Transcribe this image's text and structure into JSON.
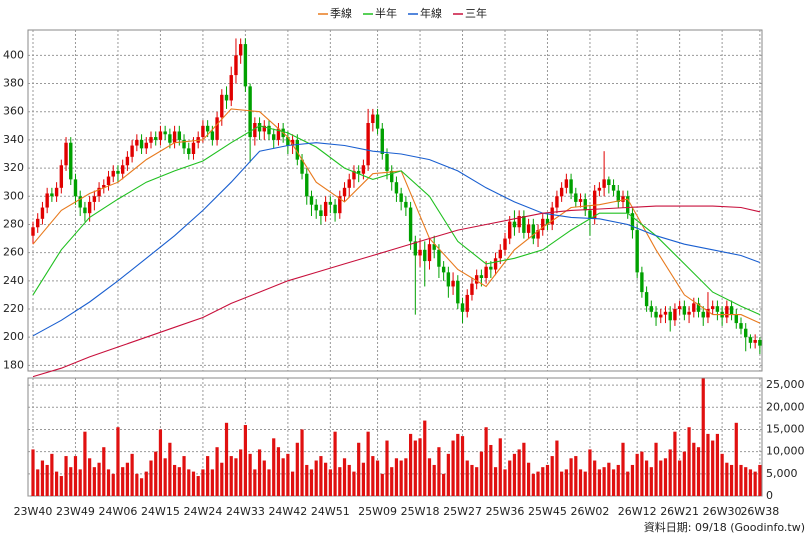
{
  "chart_data": {
    "type": "candlestick",
    "categories": [
      "23W40",
      null,
      null,
      null,
      null,
      null,
      null,
      null,
      null,
      "23W49",
      null,
      null,
      null,
      null,
      null,
      null,
      null,
      null,
      "24W06",
      null,
      null,
      null,
      null,
      null,
      null,
      null,
      null,
      "24W15",
      null,
      null,
      null,
      null,
      null,
      null,
      null,
      null,
      "24W24",
      null,
      null,
      null,
      null,
      null,
      null,
      null,
      null,
      "24W33",
      null,
      null,
      null,
      null,
      null,
      null,
      null,
      null,
      "24W42",
      null,
      null,
      null,
      null,
      null,
      null,
      null,
      null,
      "24W51",
      null,
      null,
      null,
      null,
      null,
      null,
      null,
      null,
      null,
      "25W09",
      null,
      null,
      null,
      null,
      null,
      null,
      null,
      null,
      "25W18",
      null,
      null,
      null,
      null,
      null,
      null,
      null,
      null,
      "25W27",
      null,
      null,
      null,
      null,
      null,
      null,
      null,
      null,
      "25W36",
      null,
      null,
      null,
      null,
      null,
      null,
      null,
      null,
      "25W45",
      null,
      null,
      null,
      null,
      null,
      null,
      null,
      null,
      "26W02",
      null,
      null,
      null,
      null,
      null,
      null,
      null,
      null,
      null,
      "26W12",
      null,
      null,
      null,
      null,
      null,
      null,
      null,
      null,
      "26W21",
      null,
      null,
      null,
      null,
      null,
      null,
      null,
      null,
      "26W30",
      null,
      null,
      null,
      null,
      null,
      null,
      null,
      "26W38"
    ],
    "open": [
      272,
      278,
      284,
      292,
      302,
      300,
      306,
      322,
      338,
      312,
      300,
      292,
      288,
      296,
      300,
      306,
      308,
      314,
      318,
      316,
      322,
      328,
      336,
      340,
      334,
      338,
      342,
      340,
      346,
      344,
      338,
      346,
      340,
      334,
      330,
      338,
      342,
      350,
      346,
      340,
      356,
      372,
      368,
      386,
      400,
      408,
      378,
      342,
      352,
      346,
      350,
      344,
      340,
      348,
      342,
      336,
      340,
      326,
      316,
      300,
      294,
      290,
      286,
      296,
      294,
      288,
      300,
      306,
      312,
      318,
      316,
      322,
      352,
      358,
      348,
      330,
      318,
      310,
      302,
      296,
      292,
      268,
      258,
      262,
      254,
      266,
      262,
      250,
      246,
      236,
      240,
      224,
      218,
      230,
      238,
      244,
      242,
      250,
      248,
      256,
      262,
      270,
      282,
      278,
      286,
      274,
      280,
      270,
      276,
      284,
      280,
      292,
      300,
      306,
      312,
      302,
      296,
      298,
      290,
      284,
      304,
      306,
      312,
      308,
      304,
      296,
      300,
      288,
      276,
      246,
      232,
      222,
      218,
      214,
      216,
      218,
      212,
      220,
      222,
      216,
      218,
      224,
      218,
      214,
      220,
      222,
      218,
      214,
      222,
      216,
      210,
      206,
      200,
      196,
      198
    ],
    "high": [
      282,
      288,
      296,
      306,
      306,
      310,
      326,
      342,
      342,
      316,
      304,
      296,
      300,
      304,
      310,
      312,
      318,
      322,
      322,
      326,
      332,
      340,
      344,
      344,
      342,
      346,
      346,
      350,
      350,
      348,
      350,
      350,
      344,
      338,
      342,
      346,
      354,
      354,
      350,
      360,
      376,
      378,
      392,
      412,
      412,
      412,
      380,
      356,
      356,
      354,
      354,
      348,
      352,
      352,
      346,
      344,
      344,
      330,
      320,
      304,
      298,
      294,
      300,
      300,
      298,
      304,
      310,
      316,
      322,
      322,
      326,
      362,
      362,
      362,
      352,
      334,
      322,
      314,
      306,
      300,
      296,
      272,
      270,
      268,
      270,
      272,
      266,
      254,
      250,
      246,
      244,
      228,
      234,
      242,
      248,
      248,
      254,
      254,
      260,
      266,
      274,
      286,
      290,
      290,
      290,
      284,
      284,
      280,
      288,
      288,
      296,
      304,
      310,
      316,
      316,
      306,
      302,
      302,
      294,
      308,
      310,
      332,
      314,
      312,
      308,
      304,
      304,
      292,
      280,
      250,
      236,
      226,
      222,
      220,
      222,
      222,
      224,
      226,
      226,
      222,
      228,
      228,
      222,
      232,
      226,
      226,
      222,
      226,
      226,
      220,
      214,
      210,
      202,
      202,
      200
    ],
    "low": [
      266,
      274,
      280,
      288,
      296,
      296,
      302,
      318,
      308,
      294,
      286,
      282,
      282,
      290,
      296,
      302,
      304,
      310,
      310,
      312,
      318,
      324,
      332,
      330,
      330,
      334,
      336,
      336,
      340,
      334,
      334,
      336,
      330,
      326,
      326,
      334,
      338,
      342,
      336,
      336,
      350,
      362,
      364,
      380,
      394,
      374,
      324,
      336,
      340,
      340,
      340,
      334,
      336,
      338,
      330,
      330,
      322,
      312,
      294,
      286,
      284,
      280,
      282,
      288,
      282,
      284,
      296,
      300,
      306,
      310,
      312,
      318,
      346,
      344,
      326,
      312,
      304,
      296,
      290,
      286,
      262,
      216,
      250,
      236,
      248,
      256,
      242,
      240,
      228,
      230,
      220,
      210,
      214,
      226,
      234,
      236,
      238,
      242,
      244,
      252,
      258,
      266,
      272,
      274,
      270,
      270,
      266,
      264,
      272,
      276,
      276,
      288,
      296,
      302,
      298,
      292,
      292,
      286,
      272,
      280,
      300,
      300,
      302,
      300,
      292,
      292,
      284,
      270,
      242,
      228,
      218,
      214,
      208,
      210,
      210,
      204,
      208,
      216,
      212,
      210,
      214,
      214,
      208,
      210,
      216,
      212,
      208,
      210,
      212,
      206,
      202,
      190,
      192,
      192,
      188
    ],
    "close": [
      278,
      284,
      292,
      302,
      300,
      306,
      322,
      338,
      312,
      300,
      292,
      288,
      296,
      300,
      306,
      308,
      314,
      318,
      316,
      322,
      328,
      336,
      340,
      334,
      338,
      342,
      340,
      346,
      344,
      338,
      346,
      340,
      334,
      330,
      338,
      342,
      350,
      346,
      340,
      356,
      372,
      368,
      386,
      400,
      408,
      378,
      342,
      352,
      346,
      350,
      344,
      340,
      348,
      342,
      336,
      340,
      326,
      316,
      300,
      294,
      290,
      286,
      296,
      294,
      288,
      300,
      306,
      312,
      318,
      316,
      322,
      352,
      358,
      348,
      330,
      318,
      310,
      302,
      296,
      292,
      268,
      258,
      262,
      254,
      266,
      262,
      250,
      246,
      236,
      240,
      224,
      218,
      230,
      238,
      244,
      242,
      250,
      248,
      256,
      262,
      270,
      282,
      278,
      286,
      274,
      280,
      270,
      276,
      284,
      280,
      292,
      300,
      306,
      312,
      302,
      296,
      298,
      290,
      284,
      304,
      306,
      312,
      308,
      304,
      296,
      300,
      288,
      276,
      246,
      232,
      222,
      218,
      214,
      216,
      218,
      212,
      220,
      222,
      216,
      218,
      224,
      218,
      214,
      220,
      222,
      218,
      214,
      222,
      216,
      210,
      206,
      200,
      196,
      198,
      194
    ],
    "up_color": "#e00000",
    "down_color": "#00a000",
    "ylim": [
      176,
      418
    ],
    "yticks": [
      180,
      200,
      220,
      240,
      260,
      280,
      300,
      320,
      340,
      360,
      380,
      400
    ],
    "grid": true,
    "series": [
      {
        "name": "季線",
        "color": "#e87a1e",
        "x": [
          0,
          6,
          12,
          18,
          24,
          30,
          36,
          42,
          48,
          54,
          60,
          66,
          72,
          78,
          84,
          90,
          96,
          102,
          108,
          114,
          120,
          126,
          132,
          138,
          144,
          150,
          154
        ],
        "values": [
          266,
          290,
          302,
          310,
          326,
          338,
          340,
          362,
          360,
          342,
          310,
          296,
          316,
          318,
          270,
          248,
          236,
          262,
          278,
          292,
          294,
          298,
          262,
          230,
          216,
          216,
          210
        ]
      },
      {
        "name": "半年",
        "color": "#20c020",
        "x": [
          0,
          6,
          12,
          18,
          24,
          30,
          36,
          42,
          48,
          54,
          60,
          66,
          72,
          78,
          84,
          90,
          96,
          102,
          108,
          114,
          120,
          126,
          132,
          138,
          144,
          150,
          154
        ],
        "values": [
          230,
          262,
          285,
          298,
          310,
          318,
          325,
          338,
          350,
          345,
          335,
          320,
          312,
          318,
          300,
          268,
          252,
          256,
          262,
          276,
          288,
          288,
          272,
          252,
          232,
          222,
          216
        ]
      },
      {
        "name": "年線",
        "color": "#1a5fd0",
        "x": [
          0,
          6,
          12,
          18,
          24,
          30,
          36,
          42,
          48,
          54,
          60,
          66,
          72,
          78,
          84,
          90,
          96,
          102,
          108,
          114,
          120,
          126,
          132,
          138,
          144,
          150,
          154
        ],
        "values": [
          201,
          212,
          225,
          240,
          256,
          272,
          290,
          310,
          332,
          336,
          338,
          336,
          332,
          330,
          326,
          318,
          306,
          296,
          288,
          285,
          284,
          280,
          272,
          266,
          262,
          258,
          253
        ]
      },
      {
        "name": "三年",
        "color": "#c8103c",
        "x": [
          0,
          6,
          12,
          18,
          24,
          30,
          36,
          42,
          48,
          54,
          60,
          66,
          72,
          78,
          84,
          90,
          96,
          102,
          108,
          114,
          120,
          126,
          132,
          138,
          144,
          150,
          154
        ],
        "values": [
          172,
          178,
          186,
          193,
          200,
          207,
          214,
          224,
          232,
          240,
          246,
          252,
          258,
          264,
          270,
          276,
          280,
          284,
          288,
          290,
          291,
          292,
          293,
          293,
          293,
          292,
          289
        ]
      }
    ],
    "volume": {
      "color": "#e01010",
      "y2lim": [
        0,
        26600
      ],
      "y2ticks": [
        0,
        {
          "value": 5000,
          "label": "5,000"
        },
        {
          "value": 10000,
          "label": "10,000"
        },
        {
          "value": 15000,
          "label": "15,000"
        },
        {
          "value": 20000,
          "label": "20,000"
        },
        {
          "value": 25000,
          "label": "25,000"
        }
      ],
      "values": [
        10500,
        6000,
        8000,
        7000,
        9500,
        5500,
        4500,
        9000,
        6500,
        9000,
        6000,
        14500,
        8500,
        6500,
        7500,
        11000,
        6000,
        5000,
        15500,
        6500,
        7500,
        9500,
        5000,
        4000,
        5500,
        8000,
        10000,
        15000,
        8500,
        12000,
        7000,
        6500,
        9000,
        6000,
        5500,
        4500,
        6000,
        9000,
        6000,
        11000,
        7500,
        16500,
        9000,
        8500,
        10500,
        16000,
        9500,
        6000,
        10500,
        8000,
        6000,
        13000,
        11000,
        8500,
        9500,
        5500,
        12000,
        15000,
        7000,
        6000,
        8000,
        9000,
        7500,
        6000,
        14500,
        6500,
        8500,
        7000,
        5500,
        12000,
        7500,
        14500,
        9000,
        8000,
        5000,
        12500,
        6500,
        8500,
        8000,
        8500,
        14000,
        12500,
        13000,
        17000,
        8500,
        7000,
        11000,
        5000,
        9500,
        12500,
        14000,
        13500,
        8000,
        7000,
        6500,
        10000,
        15500,
        11500,
        6500,
        13000,
        6000,
        8000,
        9500,
        10500,
        12000,
        7500,
        5000,
        5500,
        6500,
        7000,
        9000,
        12500,
        5500,
        6000,
        8500,
        9000,
        6000,
        5500,
        10500,
        8000,
        6000,
        6500,
        7500,
        6000,
        7000,
        12000,
        5500,
        7000,
        9500,
        10000,
        8000,
        6500,
        12000,
        8000,
        8500,
        10500,
        14500,
        8000,
        10000,
        15500,
        12000,
        11000,
        26500,
        14000,
        12500,
        14000,
        9500,
        7500,
        7000,
        16500,
        7000,
        6500,
        6000,
        5500,
        7000
      ]
    },
    "footer": "資料日期: 09/18 (Goodinfo.tw)"
  }
}
